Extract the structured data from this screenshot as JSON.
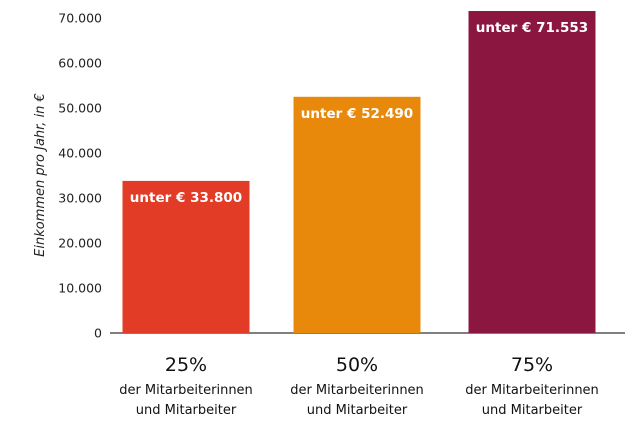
{
  "chart_data": {
    "type": "bar",
    "ylabel": "Einkommen pro Jahr, in €",
    "ylim": [
      0,
      70000
    ],
    "yticks": [
      0,
      10000,
      20000,
      30000,
      40000,
      50000,
      60000,
      70000
    ],
    "ytick_labels": [
      "0",
      "10.000",
      "20.000",
      "30.000",
      "40.000",
      "50.000",
      "60.000",
      "70.000"
    ],
    "grid": false,
    "values": [
      33800,
      52490,
      71553
    ],
    "bar_labels": [
      "unter € 33.800",
      "unter € 52.490",
      "unter € 71.553"
    ],
    "categories": [
      {
        "percent": "25%",
        "line1": "der Mitarbeiterinnen",
        "line2": "und Mitarbeiter"
      },
      {
        "percent": "50%",
        "line1": "der Mitarbeiterinnen",
        "line2": "und Mitarbeiter"
      },
      {
        "percent": "75%",
        "line1": "der Mitarbeiterinnen",
        "line2": "und Mitarbeiter"
      }
    ],
    "colors": [
      "#e23b26",
      "#e8890c",
      "#8b1740"
    ],
    "axis_color": "#333333"
  }
}
